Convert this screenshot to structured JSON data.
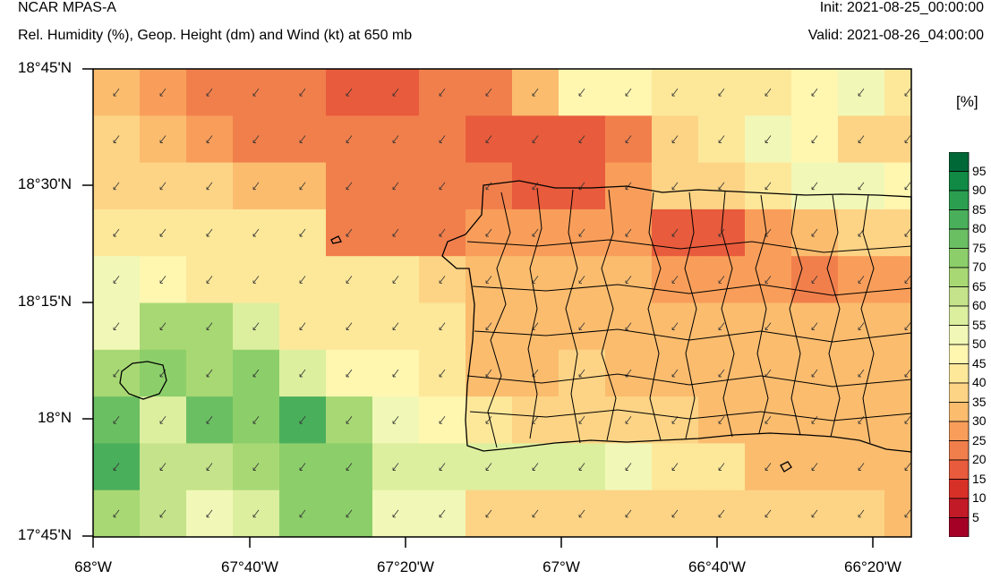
{
  "header": {
    "title": "NCAR MPAS-A",
    "subtitle": "Rel. Humidity (%), Geop. Height (dm) and Wind (kt) at 650 mb",
    "init": "Init: 2021-08-25_00:00:00",
    "valid": "Valid: 2021-08-26_04:00:00"
  },
  "axes": {
    "y_labels": [
      "18°45'N",
      "18°30'N",
      "18°15'N",
      "18°N",
      "17°45'N"
    ],
    "x_labels": [
      "68°W",
      "67°40'W",
      "67°20'W",
      "67°W",
      "66°40'W",
      "66°20'W"
    ]
  },
  "colorbar": {
    "unit": "[%]",
    "labels": [
      "95",
      "90",
      "85",
      "80",
      "75",
      "70",
      "65",
      "60",
      "55",
      "50",
      "45",
      "40",
      "35",
      "30",
      "25",
      "20",
      "15",
      "10",
      "5"
    ],
    "colors": [
      "#006837",
      "#108a44",
      "#2b9f4f",
      "#4aaf5b",
      "#6bbf63",
      "#8ccf6a",
      "#a8d874",
      "#c4e38a",
      "#dcef9f",
      "#f1f8b7",
      "#fff6b0",
      "#fde89a",
      "#fdd485",
      "#fbbc6e",
      "#f99e5a",
      "#f17f4c",
      "#e85b3c",
      "#d73027",
      "#c21a27",
      "#a50026"
    ]
  },
  "map": {
    "grid_rows": [
      [
        30,
        25,
        20,
        20,
        20,
        15,
        15,
        20,
        20,
        30,
        45,
        45,
        40,
        40,
        40,
        45,
        50,
        40
      ],
      [
        35,
        30,
        25,
        20,
        20,
        20,
        20,
        20,
        15,
        15,
        15,
        20,
        35,
        40,
        50,
        45,
        35,
        35
      ],
      [
        35,
        35,
        35,
        30,
        30,
        20,
        20,
        20,
        20,
        15,
        15,
        25,
        35,
        35,
        40,
        50,
        50,
        45
      ],
      [
        40,
        40,
        40,
        40,
        40,
        20,
        20,
        20,
        25,
        25,
        25,
        25,
        15,
        15,
        25,
        30,
        35,
        35
      ],
      [
        50,
        45,
        40,
        40,
        40,
        40,
        40,
        35,
        30,
        30,
        30,
        30,
        25,
        25,
        25,
        20,
        25,
        25
      ],
      [
        50,
        65,
        65,
        55,
        40,
        40,
        40,
        40,
        30,
        30,
        30,
        30,
        30,
        30,
        30,
        30,
        30,
        30
      ],
      [
        65,
        70,
        65,
        70,
        55,
        45,
        45,
        40,
        30,
        30,
        35,
        30,
        30,
        30,
        30,
        30,
        30,
        30
      ],
      [
        75,
        55,
        75,
        70,
        80,
        65,
        50,
        45,
        40,
        35,
        35,
        35,
        35,
        30,
        30,
        30,
        30,
        30
      ],
      [
        80,
        60,
        60,
        65,
        70,
        70,
        55,
        55,
        55,
        55,
        55,
        50,
        40,
        40,
        30,
        30,
        30,
        30
      ],
      [
        65,
        60,
        50,
        55,
        70,
        70,
        50,
        50,
        35,
        35,
        35,
        35,
        35,
        35,
        35,
        35,
        35,
        30
      ],
      [
        75,
        60,
        50,
        45,
        50,
        45,
        45,
        45,
        35,
        35,
        35,
        35,
        40,
        40,
        35,
        35,
        35,
        35
      ]
    ]
  }
}
